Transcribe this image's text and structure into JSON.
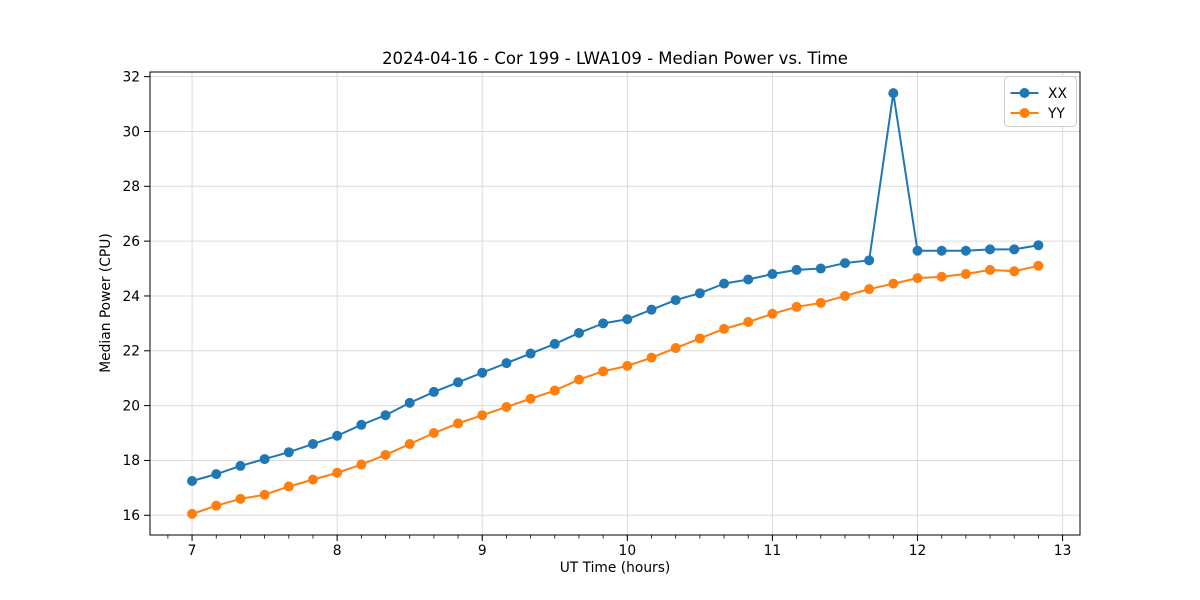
{
  "chart_data": {
    "type": "line",
    "title": "2024-04-16 - Cor 199 - LWA109 - Median Power vs. Time",
    "xlabel": "UT Time (hours)",
    "ylabel": "Median Power (CPU)",
    "x": [
      7.0,
      7.1667,
      7.3333,
      7.5,
      7.6667,
      7.8333,
      8.0,
      8.1667,
      8.3333,
      8.5,
      8.6667,
      8.8333,
      9.0,
      9.1667,
      9.3333,
      9.5,
      9.6667,
      9.8333,
      10.0,
      10.1667,
      10.3333,
      10.5,
      10.6667,
      10.8333,
      11.0,
      11.1667,
      11.3333,
      11.5,
      11.6667,
      11.8333,
      12.0,
      12.1667,
      12.3333,
      12.5,
      12.6667,
      12.8333
    ],
    "series": [
      {
        "name": "XX",
        "color": "#1f77b4",
        "values": [
          17.25,
          17.5,
          17.8,
          18.05,
          18.3,
          18.6,
          18.9,
          19.3,
          19.65,
          20.1,
          20.5,
          20.85,
          21.2,
          21.55,
          21.9,
          22.25,
          22.65,
          23.0,
          23.15,
          23.5,
          23.85,
          24.1,
          24.45,
          24.6,
          24.8,
          24.95,
          25.0,
          25.2,
          25.3,
          31.4,
          25.65,
          25.65,
          25.65,
          25.7,
          25.7,
          25.85
        ]
      },
      {
        "name": "YY",
        "color": "#ff7f0e",
        "values": [
          16.05,
          16.35,
          16.6,
          16.75,
          17.05,
          17.3,
          17.55,
          17.85,
          18.2,
          18.6,
          19.0,
          19.35,
          19.65,
          19.95,
          20.25,
          20.55,
          20.95,
          21.25,
          21.45,
          21.75,
          22.1,
          22.45,
          22.8,
          23.05,
          23.35,
          23.6,
          23.75,
          24.0,
          24.25,
          24.45,
          24.65,
          24.7,
          24.8,
          24.95,
          24.9,
          25.1
        ]
      }
    ],
    "xlim": [
      6.71,
      13.12
    ],
    "ylim": [
      15.28,
      32.17
    ],
    "xticks": [
      7,
      8,
      9,
      10,
      11,
      12,
      13
    ],
    "yticks": [
      16,
      18,
      20,
      22,
      24,
      26,
      28,
      30,
      32
    ],
    "x_minor_step": 0.166667,
    "grid": true,
    "marker": "circle",
    "legend": {
      "position": "upper right",
      "entries": [
        "XX",
        "YY"
      ]
    }
  },
  "style": {
    "grid_color": "#dcdcdc",
    "spine_color": "#000000",
    "legend_border_color": "#cccccc",
    "background": "#ffffff"
  }
}
